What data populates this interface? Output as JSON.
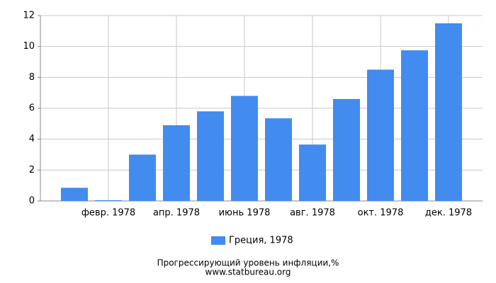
{
  "chart_data": {
    "type": "bar",
    "title": "Прогрессирующий уровень инфляции,%",
    "source": "www.statbureau.org",
    "categories": [
      null,
      "февр. 1978",
      null,
      "апр. 1978",
      null,
      "июнь 1978",
      null,
      "авг. 1978",
      null,
      "окт. 1978",
      null,
      "дек. 1978"
    ],
    "series": [
      {
        "name": "Греция, 1978",
        "color": "#428bef",
        "values": [
          0.85,
          0.05,
          3.0,
          4.9,
          5.8,
          6.8,
          5.35,
          3.65,
          6.6,
          8.5,
          9.75,
          11.5
        ]
      }
    ],
    "ylim": [
      0,
      12
    ],
    "yticks": [
      0,
      2,
      4,
      6,
      8,
      10,
      12
    ],
    "grid": true,
    "legend": "bottom"
  }
}
